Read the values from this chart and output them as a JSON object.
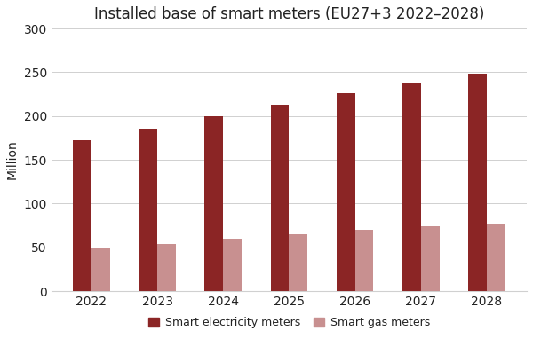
{
  "title": "Installed base of smart meters (EU27+3 2022–2028)",
  "years": [
    2022,
    2023,
    2024,
    2025,
    2026,
    2027,
    2028
  ],
  "electricity": [
    172,
    186,
    200,
    213,
    226,
    238,
    248
  ],
  "gas": [
    50,
    54,
    60,
    65,
    70,
    74,
    77
  ],
  "electricity_color": "#8B2525",
  "gas_color": "#C89090",
  "ylabel": "Million",
  "ylim": [
    0,
    300
  ],
  "yticks": [
    0,
    50,
    100,
    150,
    200,
    250,
    300
  ],
  "legend_electricity": "Smart electricity meters",
  "legend_gas": "Smart gas meters",
  "title_fontsize": 12,
  "axis_label_fontsize": 10,
  "tick_fontsize": 10,
  "legend_fontsize": 9,
  "background_color": "#FFFFFF",
  "bar_width": 0.28,
  "grid_color": "#D0D0D0",
  "text_color": "#222222"
}
